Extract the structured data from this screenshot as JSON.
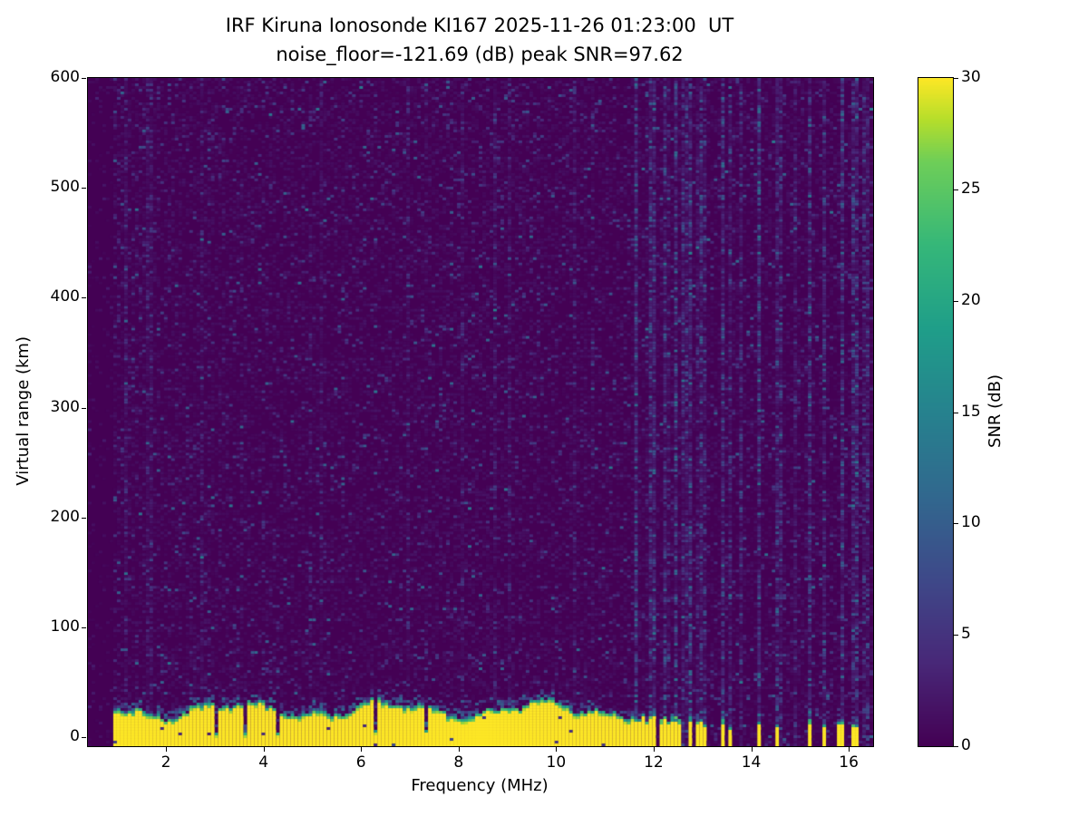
{
  "figure": {
    "title_line1": "IRF Kiruna Ionosonde KI167 2025-11-26 01:23:00  UT",
    "title_line2": "noise_floor=-121.69 (dB) peak SNR=97.62",
    "xlabel": "Frequency (MHz)",
    "ylabel": "Virtual range (km)",
    "colorbar_label": "SNR (dB)"
  },
  "chart_data": {
    "type": "heatmap",
    "title": "IRF Kiruna Ionosonde KI167 2025-11-26 01:23:00  UT",
    "subtitle": "noise_floor=-121.69 (dB) peak SNR=97.62",
    "station": "IRF Kiruna Ionosonde KI167",
    "timestamp_ut": "2025-11-26 01:23:00",
    "noise_floor_db": -121.69,
    "peak_snr_db": 97.62,
    "xlabel": "Frequency (MHz)",
    "ylabel": "Virtual range (km)",
    "x_range": [
      0.4,
      16.5
    ],
    "y_range": [
      -8,
      600
    ],
    "x_ticks": [
      2,
      4,
      6,
      8,
      10,
      12,
      14,
      16
    ],
    "y_ticks": [
      0,
      100,
      200,
      300,
      400,
      500,
      600
    ],
    "grid": false,
    "colorbar": {
      "label": "SNR (dB)",
      "min": 0,
      "max": 30,
      "ticks": [
        0,
        5,
        10,
        15,
        20,
        25,
        30
      ],
      "colormap": "viridis",
      "stops": [
        [
          0.0,
          "#440154"
        ],
        [
          0.125,
          "#482878"
        ],
        [
          0.25,
          "#3e4989"
        ],
        [
          0.375,
          "#31688e"
        ],
        [
          0.5,
          "#26828e"
        ],
        [
          0.625,
          "#1f9e89"
        ],
        [
          0.75,
          "#35b779"
        ],
        [
          0.875,
          "#6ece58"
        ],
        [
          0.9375,
          "#b5de2b"
        ],
        [
          1.0,
          "#fde725"
        ]
      ]
    },
    "render": {
      "ground_echo": {
        "freq_start": 0.95,
        "freq_end": 11.62,
        "top_mean_km": 26,
        "top_wave_km": 6,
        "snr_db": 30,
        "notch_freqs": [
          3.05,
          3.65,
          4.3,
          6.32,
          7.35
        ]
      },
      "rfi_stripes": [
        {
          "f": 11.67,
          "w": 0.05,
          "h": 17
        },
        {
          "f": 11.76,
          "w": 0.04,
          "h": 21
        },
        {
          "f": 11.85,
          "w": 0.04,
          "h": 14
        },
        {
          "f": 11.94,
          "w": 0.05,
          "h": 19
        },
        {
          "f": 12.03,
          "w": 0.04,
          "h": 21
        },
        {
          "f": 12.13,
          "w": 0.04,
          "h": 16
        },
        {
          "f": 12.22,
          "w": 0.05,
          "h": 19
        },
        {
          "f": 12.32,
          "w": 0.04,
          "h": 14
        },
        {
          "f": 12.43,
          "w": 0.05,
          "h": 18
        },
        {
          "f": 12.54,
          "w": 0.04,
          "h": 16
        },
        {
          "f": 12.64,
          "w": 0.03,
          "h": 12
        },
        {
          "f": 12.75,
          "w": 0.05,
          "h": 18
        },
        {
          "f": 12.87,
          "w": 0.04,
          "h": 15
        },
        {
          "f": 12.98,
          "w": 0.04,
          "h": 17
        },
        {
          "f": 13.08,
          "w": 0.04,
          "h": 13
        },
        {
          "f": 13.44,
          "w": 0.05,
          "h": 16
        },
        {
          "f": 13.56,
          "w": 0.03,
          "h": 9
        },
        {
          "f": 14.18,
          "w": 0.05,
          "h": 15
        },
        {
          "f": 14.51,
          "w": 0.04,
          "h": 13
        },
        {
          "f": 14.64,
          "w": 0.03,
          "h": 10
        },
        {
          "f": 15.18,
          "w": 0.05,
          "h": 16
        },
        {
          "f": 15.51,
          "w": 0.04,
          "h": 12
        },
        {
          "f": 15.84,
          "w": 0.05,
          "h": 14
        },
        {
          "f": 16.13,
          "w": 0.04,
          "h": 13
        },
        {
          "f": 16.35,
          "w": 0.03,
          "h": 8
        }
      ],
      "rfi_columns": [
        {
          "f": 1.15,
          "i": 1.2
        },
        {
          "f": 2.75,
          "i": 0.8
        },
        {
          "f": 5.2,
          "i": 0.8
        },
        {
          "f": 7.0,
          "i": 0.8
        },
        {
          "f": 9.05,
          "i": 0.9
        },
        {
          "f": 10.4,
          "i": 1.0
        },
        {
          "f": 11.67,
          "i": 3.0
        },
        {
          "f": 11.94,
          "i": 2.5
        },
        {
          "f": 12.03,
          "i": 3.0
        },
        {
          "f": 12.22,
          "i": 2.5
        },
        {
          "f": 12.43,
          "i": 3.0
        },
        {
          "f": 12.64,
          "i": 2.0
        },
        {
          "f": 12.75,
          "i": 3.0
        },
        {
          "f": 12.98,
          "i": 2.5
        },
        {
          "f": 13.08,
          "i": 2.0
        },
        {
          "f": 13.44,
          "i": 3.0
        },
        {
          "f": 13.56,
          "i": 2.0
        },
        {
          "f": 13.8,
          "i": 2.0
        },
        {
          "f": 14.18,
          "i": 3.5
        },
        {
          "f": 14.51,
          "i": 2.5
        },
        {
          "f": 14.64,
          "i": 2.0
        },
        {
          "f": 14.9,
          "i": 1.5
        },
        {
          "f": 15.18,
          "i": 3.0
        },
        {
          "f": 15.51,
          "i": 2.5
        },
        {
          "f": 15.84,
          "i": 3.0
        },
        {
          "f": 16.13,
          "i": 2.5
        },
        {
          "f": 16.35,
          "i": 2.0
        }
      ],
      "noise": {
        "background_db_max": 1.8,
        "speckle_db_max": 14
      }
    }
  }
}
